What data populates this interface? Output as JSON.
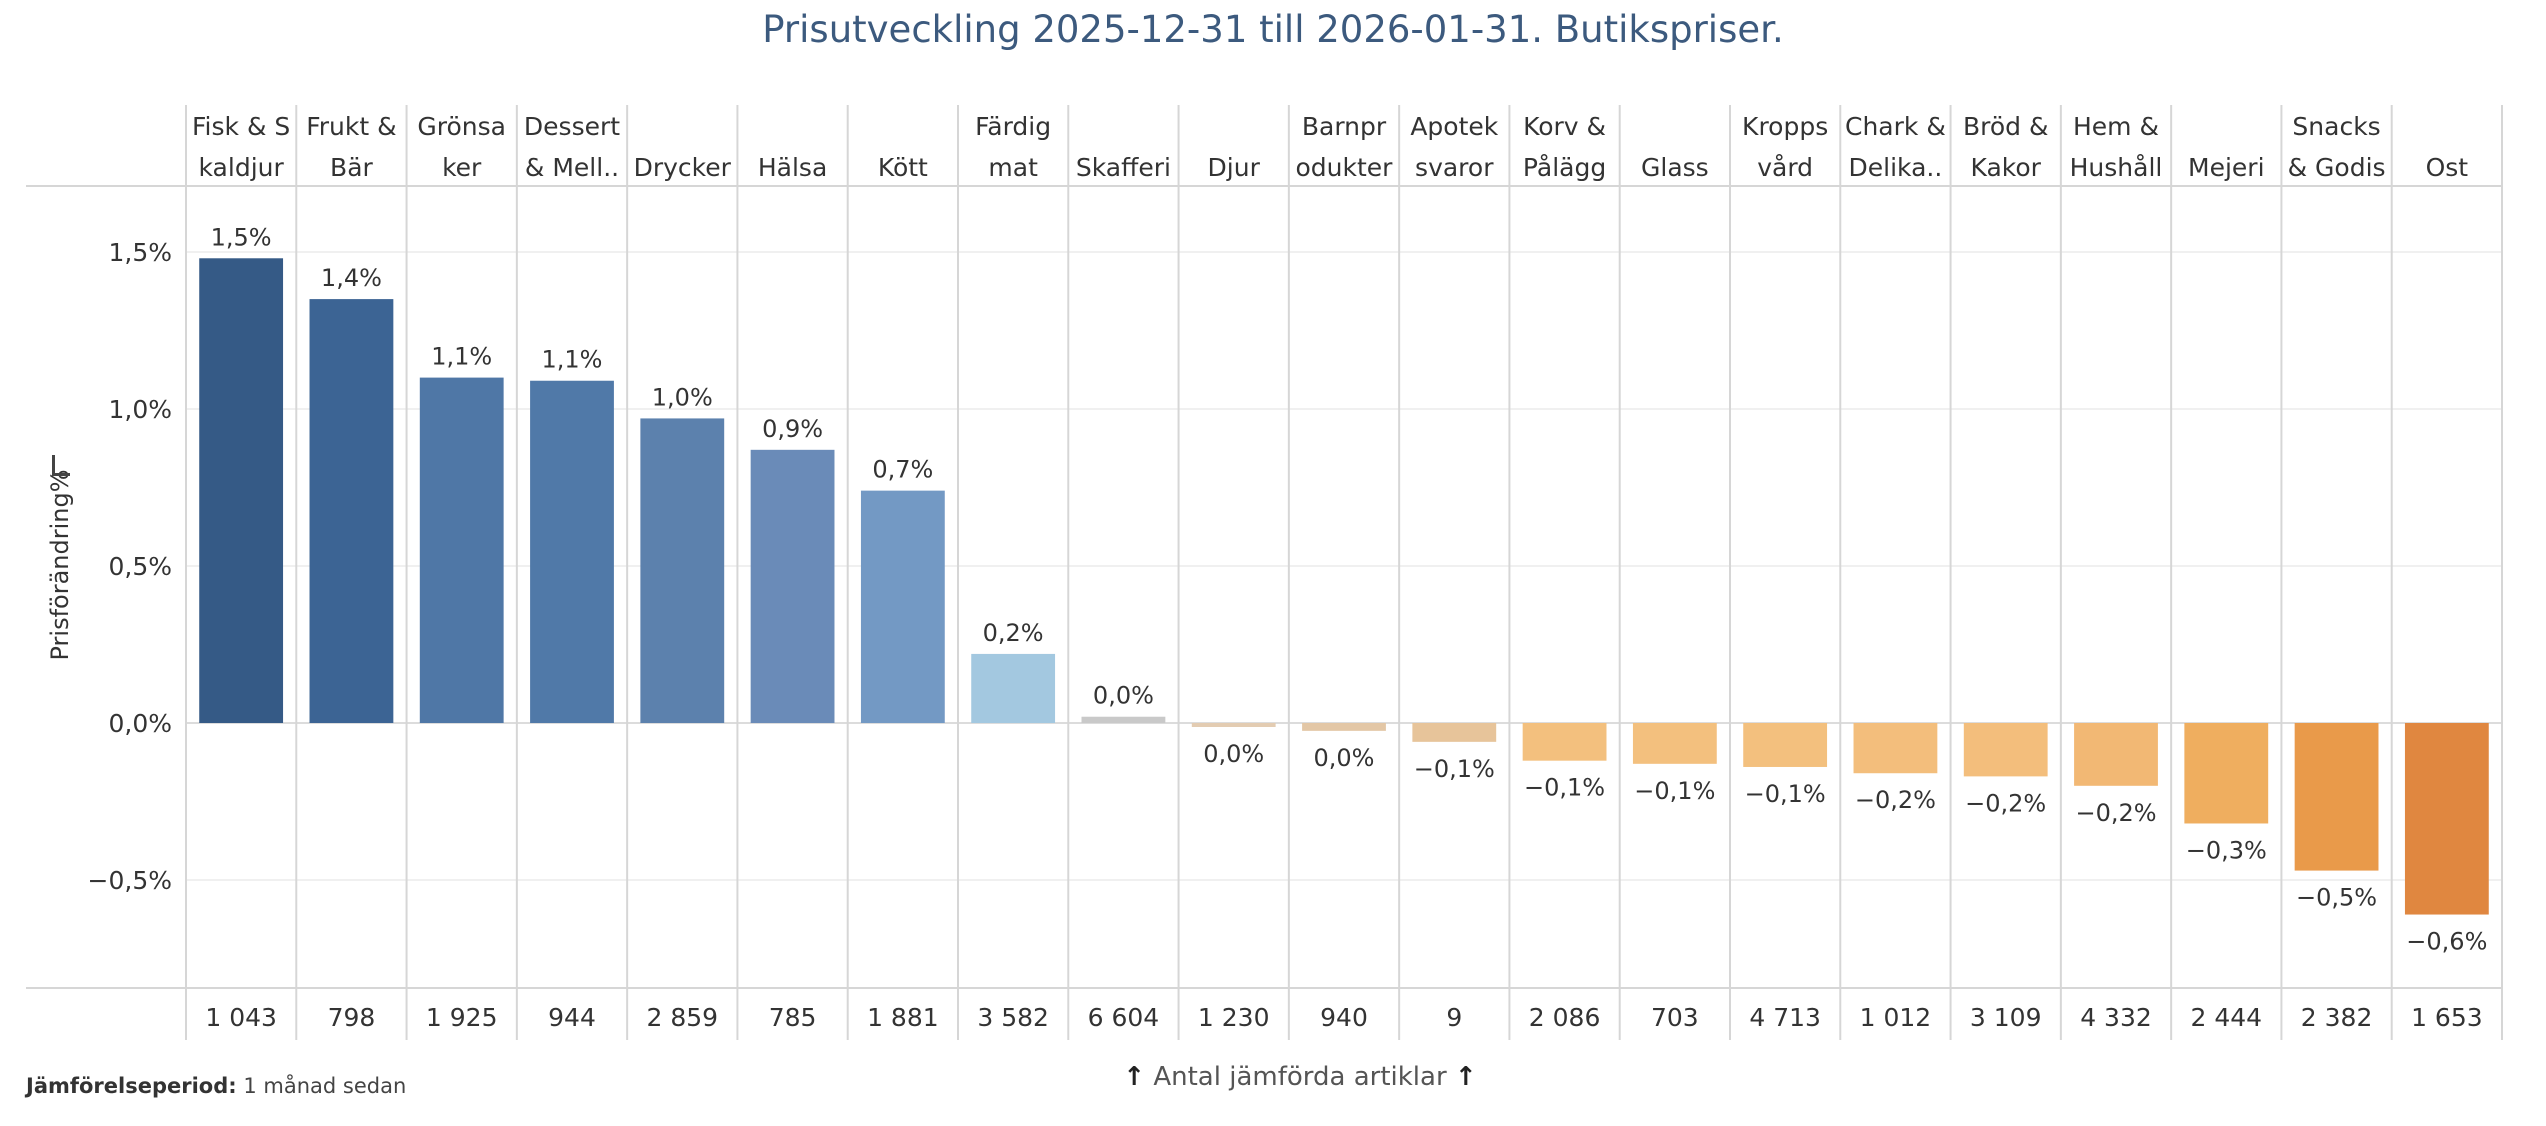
{
  "footnote": {
    "label": "Jämförelseperiod:",
    "value": "1 månad sedan"
  },
  "footer_note": {
    "arrow_left": "↑",
    "text": "Antal jämförda artiklar",
    "arrow_right": "↑"
  },
  "colors": {
    "grid": "#d6d6d6",
    "text": "#333333",
    "title": "#3c5a7e",
    "bar_colors": [
      "#355a86",
      "#3c6494",
      "#4f77a6",
      "#5079a8",
      "#5c81ad",
      "#6a8bb8",
      "#7399c4",
      "#a3c8e0",
      "#c9c9c9",
      "#e3ccb2",
      "#e3c7a6",
      "#e7c49a",
      "#f3c07e",
      "#f3c07e",
      "#f3c07e",
      "#f3be7c",
      "#f3be7c",
      "#f2b874",
      "#efae5f",
      "#e99a4a",
      "#e08740"
    ]
  },
  "chart_data": {
    "type": "bar",
    "title": "Prisutveckling 2025-12-31 till 2026-01-31. Butikspriser.",
    "ylabel": "Prisförändring%",
    "xlabel": "Antal jämförda artiklar",
    "ylim": [
      -0.85,
      1.7
    ],
    "yticks": [
      1.5,
      1.0,
      0.5,
      0.0,
      -0.5
    ],
    "ytick_labels": [
      "1,5%",
      "1,0%",
      "0,5%",
      "0,0%",
      "−0,5%"
    ],
    "gridlines": true,
    "categories": [
      [
        "Fisk & S",
        "kaldjur"
      ],
      [
        "Frukt &",
        "Bär"
      ],
      [
        "Grönsa",
        "ker"
      ],
      [
        "Dessert",
        "& Mell.."
      ],
      [
        "Drycker"
      ],
      [
        "Hälsa"
      ],
      [
        "Kött"
      ],
      [
        "Färdig",
        "mat"
      ],
      [
        "Skafferi"
      ],
      [
        "Djur"
      ],
      [
        "Barnpr",
        "odukter"
      ],
      [
        "Apotek",
        "svaror"
      ],
      [
        "Korv &",
        "Pålägg"
      ],
      [
        "Glass"
      ],
      [
        "Kropps",
        "vård"
      ],
      [
        "Chark &",
        "Delika.."
      ],
      [
        "Bröd &",
        "Kakor"
      ],
      [
        "Hem &",
        "Hushåll"
      ],
      [
        "Mejeri"
      ],
      [
        "Snacks",
        "& Godis"
      ],
      [
        "Ost"
      ]
    ],
    "values": [
      1.48,
      1.35,
      1.1,
      1.09,
      0.97,
      0.87,
      0.74,
      0.22,
      0.02,
      -0.01,
      -0.025,
      -0.06,
      -0.12,
      -0.13,
      -0.14,
      -0.16,
      -0.17,
      -0.2,
      -0.32,
      -0.47,
      -0.61
    ],
    "value_labels": [
      "1,5%",
      "1,4%",
      "1,1%",
      "1,1%",
      "1,0%",
      "0,9%",
      "0,7%",
      "0,2%",
      "0,0%",
      "0,0%",
      "0,0%",
      "−0,1%",
      "−0,1%",
      "−0,1%",
      "−0,1%",
      "−0,2%",
      "−0,2%",
      "−0,2%",
      "−0,3%",
      "−0,5%",
      "−0,6%"
    ],
    "counts": [
      "1 043",
      "798",
      "1 925",
      "944",
      "2 859",
      "785",
      "1 881",
      "3 582",
      "6 604",
      "1 230",
      "940",
      "9",
      "2 086",
      "703",
      "4 713",
      "1 012",
      "3 109",
      "4 332",
      "2 444",
      "2 382",
      "1 653"
    ]
  }
}
